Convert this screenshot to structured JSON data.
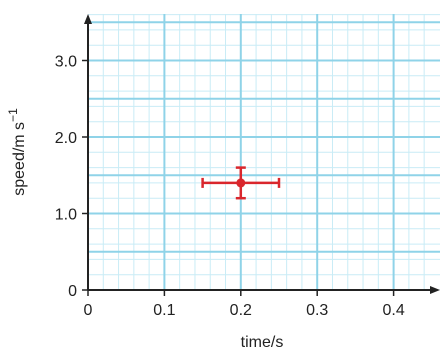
{
  "chart_data": {
    "type": "scatter",
    "title": "",
    "xlabel": "time/s",
    "ylabel": "speed/m s",
    "ylabel_superscript": "−1",
    "xlim": [
      0,
      0.45
    ],
    "ylim": [
      0,
      3.6
    ],
    "x_ticks": [
      0,
      0.1,
      0.2,
      0.3,
      0.4
    ],
    "x_tick_labels": [
      "0",
      "0.1",
      "0.2",
      "0.3",
      "0.4"
    ],
    "y_ticks": [
      0,
      1.0,
      2.0,
      3.0
    ],
    "y_tick_labels": [
      "0",
      "1.0",
      "2.0",
      "3.0"
    ],
    "grid": true,
    "minor_grid_step_x": 0.02,
    "minor_grid_step_y": 0.2,
    "points": [
      {
        "x": 0.2,
        "y": 1.4,
        "x_error": 0.05,
        "y_error": 0.2
      }
    ],
    "colors": {
      "major_grid": "#8fd3e8",
      "minor_grid": "#c9ecf6",
      "axis": "#222222",
      "point": "#d9262c"
    }
  }
}
